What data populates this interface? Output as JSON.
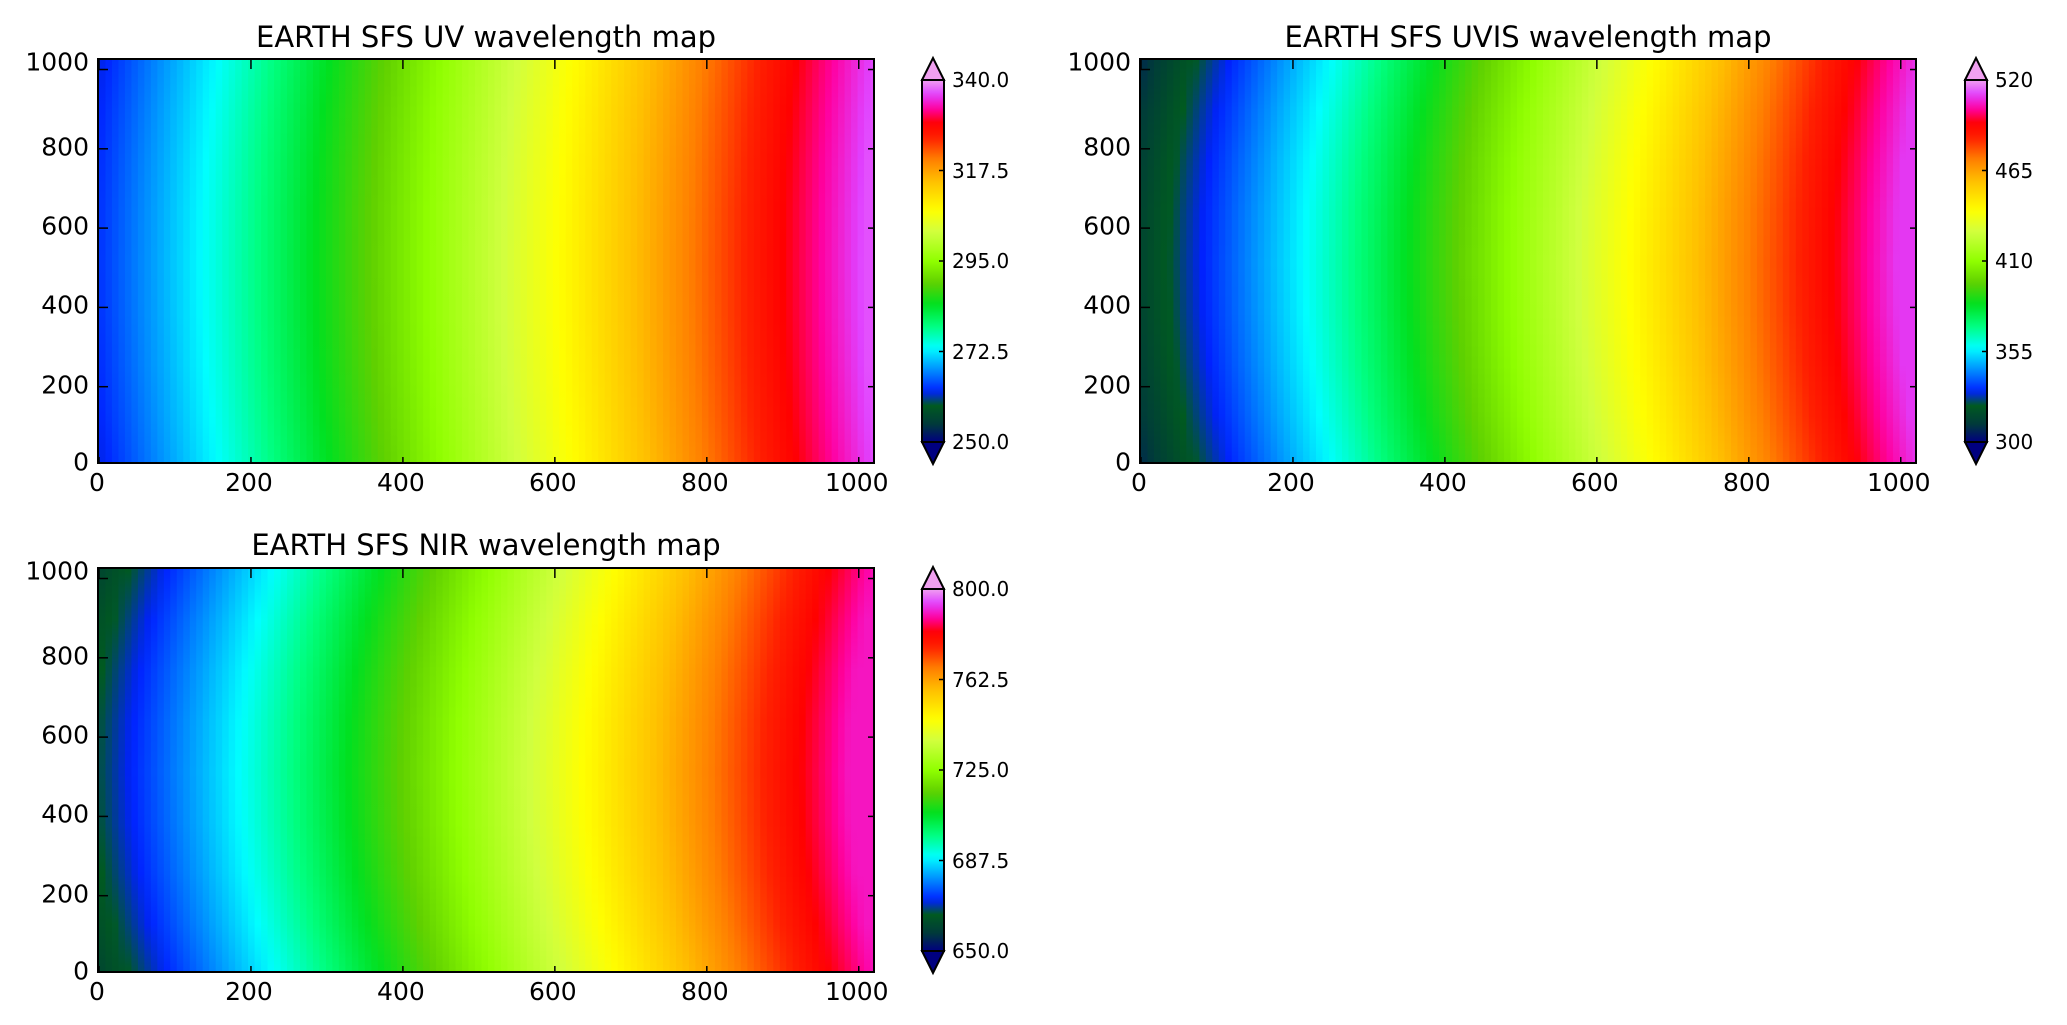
{
  "chart_data": [
    {
      "type": "heatmap",
      "title": "EARTH SFS UV wavelength map",
      "xlim": [
        0,
        1024
      ],
      "ylim": [
        0,
        1024
      ],
      "xticks": [
        "0",
        "200",
        "400",
        "600",
        "800",
        "1000"
      ],
      "yticks": [
        "0",
        "200",
        "400",
        "600",
        "800",
        "1000"
      ],
      "colorbar": {
        "vmin": 250.0,
        "vmax": 340.0,
        "extend": "both",
        "ticks": [
          "250.0",
          "272.5",
          "295.0",
          "317.5",
          "340.0"
        ],
        "colormap": "gist_ncar"
      },
      "value_range": [
        262,
        337
      ],
      "curvature": 0.02
    },
    {
      "type": "heatmap",
      "title": "EARTH SFS UVIS wavelength map",
      "xlim": [
        0,
        1024
      ],
      "ylim": [
        0,
        1024
      ],
      "xticks": [
        "0",
        "200",
        "400",
        "600",
        "800",
        "1000"
      ],
      "yticks": [
        "0",
        "200",
        "400",
        "600",
        "800",
        "1000"
      ],
      "colorbar": {
        "vmin": 300,
        "vmax": 520,
        "extend": "both",
        "ticks": [
          "300",
          "355",
          "410",
          "465",
          "520"
        ],
        "colormap": "gist_ncar"
      },
      "value_range": [
        308,
        510
      ],
      "curvature": 0.035
    },
    {
      "type": "heatmap",
      "title": "EARTH SFS NIR wavelength map",
      "xlim": [
        0,
        1024
      ],
      "ylim": [
        0,
        1024
      ],
      "xticks": [
        "0",
        "200",
        "400",
        "600",
        "800",
        "1000"
      ],
      "yticks": [
        "0",
        "200",
        "400",
        "600",
        "800",
        "1000"
      ],
      "colorbar": {
        "vmin": 650.0,
        "vmax": 800.0,
        "extend": "both",
        "ticks": [
          "650.0",
          "687.5",
          "725.0",
          "762.5",
          "800.0"
        ],
        "colormap": "gist_ncar"
      },
      "value_range": [
        660,
        790
      ],
      "curvature": 0.045
    }
  ],
  "colors": {
    "axis": "#000000",
    "background": "#ffffff"
  }
}
